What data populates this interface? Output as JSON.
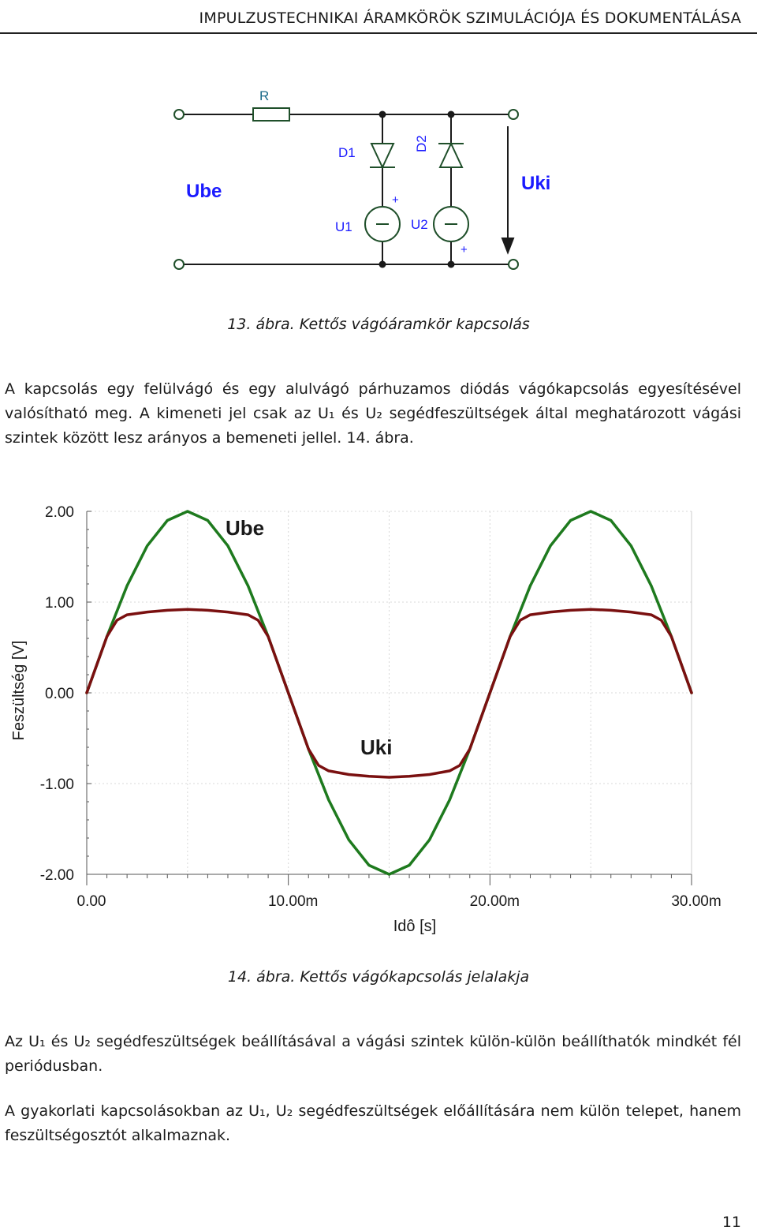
{
  "header": {
    "title": "IMPULZUSTECHNIKAI ÁRAMKÖRÖK SZIMULÁCIÓJA ÉS DOKUMENTÁLÁSA"
  },
  "circuit": {
    "resistor_label": "R",
    "diode1_label": "D1",
    "diode2_label": "D2",
    "source1_label": "U1",
    "source2_label": "U2",
    "plus_sign": "+",
    "input_label": "Ube",
    "output_label": "Uki",
    "colors": {
      "wire": "#1a1a1a",
      "component": "#1f4f2a",
      "label_blue": "#1a1aff",
      "label_teal": "#1a6a8a"
    }
  },
  "figure13": {
    "caption": "13. ábra. Kettős vágóáramkör kapcsolás"
  },
  "paragraph1": "A kapcsolás egy felülvágó és egy alulvágó párhuzamos diódás vágókapcsolás egyesítésével valósítható meg. A kimeneti jel csak az U₁ és U₂ segédfeszültségek által meghatározott vágási szintek között lesz arányos a bemeneti jellel. 14. ábra.",
  "chart_data": {
    "type": "line",
    "xlabel": "Idô [s]",
    "ylabel": "Feszültség [V]",
    "xlim": [
      0,
      0.03
    ],
    "ylim": [
      -2,
      2
    ],
    "x_ticks": [
      "0.00",
      "10.00m",
      "20.00m",
      "30.00m"
    ],
    "y_ticks": [
      "2.00",
      "1.00",
      "0.00",
      "-1.00",
      "-2.00"
    ],
    "grid": true,
    "series": [
      {
        "name": "Ube",
        "color": "#1e7a1e",
        "x": [
          0,
          0.001,
          0.002,
          0.003,
          0.004,
          0.005,
          0.006,
          0.007,
          0.008,
          0.009,
          0.01,
          0.011,
          0.012,
          0.013,
          0.014,
          0.015,
          0.016,
          0.017,
          0.018,
          0.019,
          0.02,
          0.021,
          0.022,
          0.023,
          0.024,
          0.025,
          0.026,
          0.027,
          0.028,
          0.029,
          0.03
        ],
        "y": [
          0,
          0.62,
          1.18,
          1.62,
          1.9,
          2.0,
          1.9,
          1.62,
          1.18,
          0.62,
          0,
          -0.62,
          -1.18,
          -1.62,
          -1.9,
          -2.0,
          -1.9,
          -1.62,
          -1.18,
          -0.62,
          0,
          0.62,
          1.18,
          1.62,
          1.9,
          2.0,
          1.9,
          1.62,
          1.18,
          0.62,
          0
        ]
      },
      {
        "name": "Uki",
        "color": "#7a1010",
        "x": [
          0,
          0.001,
          0.0015,
          0.002,
          0.003,
          0.004,
          0.005,
          0.006,
          0.007,
          0.008,
          0.0085,
          0.009,
          0.01,
          0.011,
          0.0115,
          0.012,
          0.013,
          0.014,
          0.015,
          0.016,
          0.017,
          0.018,
          0.0185,
          0.019,
          0.02,
          0.021,
          0.0215,
          0.022,
          0.023,
          0.024,
          0.025,
          0.026,
          0.027,
          0.028,
          0.0285,
          0.029,
          0.03
        ],
        "y": [
          0,
          0.62,
          0.8,
          0.86,
          0.89,
          0.91,
          0.92,
          0.91,
          0.89,
          0.86,
          0.8,
          0.62,
          0,
          -0.62,
          -0.8,
          -0.86,
          -0.9,
          -0.92,
          -0.93,
          -0.92,
          -0.9,
          -0.86,
          -0.8,
          -0.62,
          0,
          0.62,
          0.8,
          0.86,
          0.89,
          0.91,
          0.92,
          0.91,
          0.89,
          0.86,
          0.8,
          0.62,
          0
        ]
      }
    ]
  },
  "figure14": {
    "caption": "14. ábra. Kettős vágókapcsolás jelalakja"
  },
  "paragraph2": "Az U₁ és U₂ segédfeszültségek beállításával a vágási szintek külön-külön beállíthatók mindkét fél periódusban.",
  "paragraph3": "A gyakorlati kapcsolásokban az U₁, U₂ segédfeszültségek előállítására nem külön telepet, hanem feszültségosztót alkalmaznak.",
  "page_number": "11"
}
